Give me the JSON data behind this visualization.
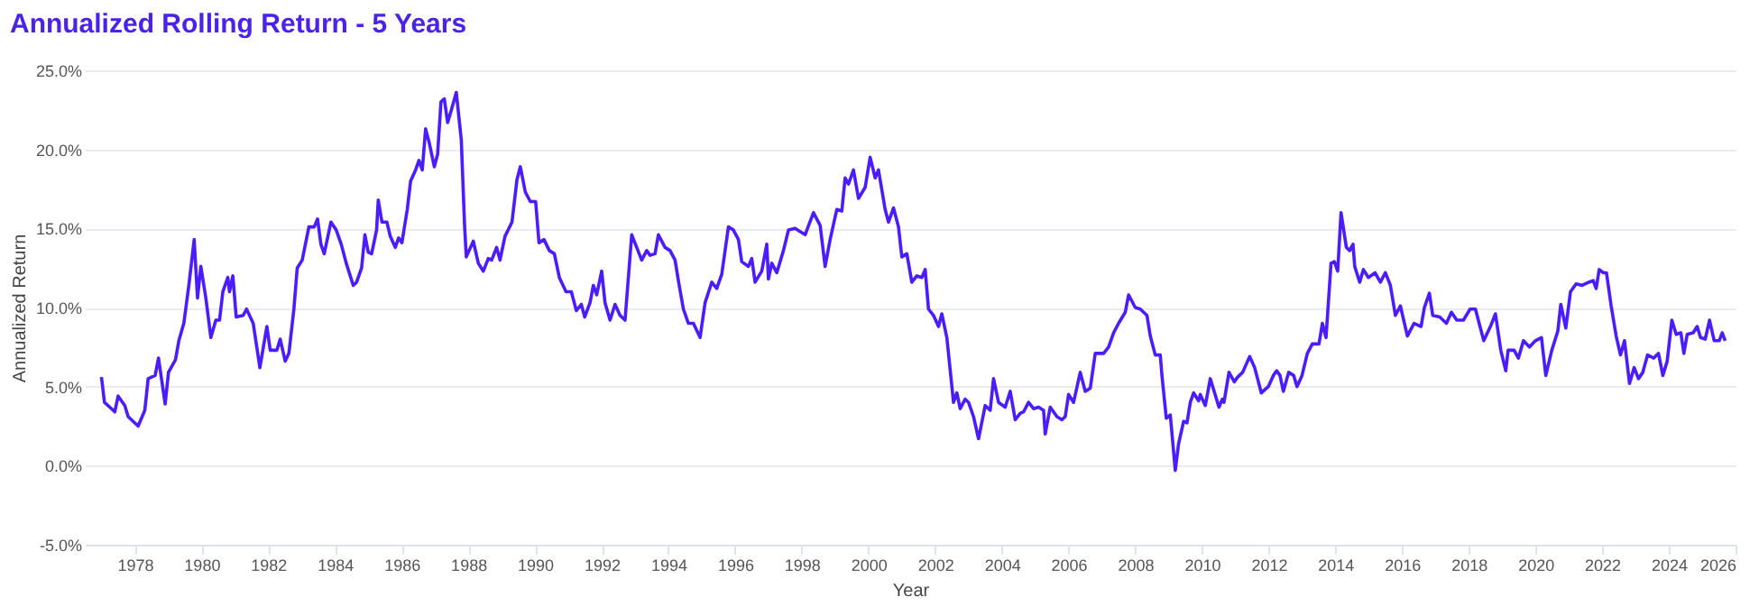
{
  "chart_data": {
    "type": "line",
    "title": "Annualized Rolling Return - 5 Years",
    "xlabel": "Year",
    "ylabel": "Annualized Return",
    "xlim": [
      1976.5,
      2026
    ],
    "xticks": [
      1978,
      1980,
      1982,
      1984,
      1986,
      1988,
      1990,
      1992,
      1994,
      1996,
      1998,
      2000,
      2002,
      2004,
      2006,
      2008,
      2010,
      2012,
      2014,
      2016,
      2018,
      2020,
      2022,
      2024,
      2026
    ],
    "ylim": [
      -5,
      25
    ],
    "yticks": [
      {
        "value": -5,
        "label": "-5.0%"
      },
      {
        "value": 0,
        "label": "0.0%"
      },
      {
        "value": 5,
        "label": "5.0%"
      },
      {
        "value": 10,
        "label": "10.0%"
      },
      {
        "value": 15,
        "label": "15.0%"
      },
      {
        "value": 20,
        "label": "20.0%"
      },
      {
        "value": 25,
        "label": "25.0%"
      }
    ],
    "grid": "y",
    "series": [
      {
        "color": "#4b1cff",
        "x": [
          1977.0,
          1977.09,
          1977.3,
          1977.4,
          1977.5,
          1977.7,
          1977.8,
          1978.1,
          1978.3,
          1978.4,
          1978.61,
          1978.71,
          1978.91,
          1979.01,
          1979.22,
          1979.32,
          1979.47,
          1979.62,
          1979.78,
          1979.88,
          1979.98,
          1980.13,
          1980.28,
          1980.43,
          1980.54,
          1980.64,
          1980.79,
          1980.84,
          1980.94,
          1981.04,
          1981.25,
          1981.35,
          1981.55,
          1981.75,
          1981.96,
          1982.06,
          1982.26,
          1982.36,
          1982.51,
          1982.62,
          1982.77,
          1982.87,
          1983.02,
          1983.22,
          1983.38,
          1983.48,
          1983.58,
          1983.68,
          1983.88,
          1984.04,
          1984.19,
          1984.34,
          1984.55,
          1984.65,
          1984.8,
          1984.9,
          1985.0,
          1985.1,
          1985.25,
          1985.3,
          1985.41,
          1985.56,
          1985.66,
          1985.81,
          1985.91,
          1986.01,
          1986.17,
          1986.27,
          1986.42,
          1986.52,
          1986.62,
          1986.72,
          1986.83,
          1986.98,
          1987.08,
          1987.18,
          1987.28,
          1987.38,
          1987.48,
          1987.64,
          1987.79,
          1987.89,
          1987.94,
          1988.15,
          1988.3,
          1988.45,
          1988.6,
          1988.7,
          1988.85,
          1988.95,
          1989.1,
          1989.31,
          1989.46,
          1989.56,
          1989.71,
          1989.86,
          1990.02,
          1990.12,
          1990.27,
          1990.43,
          1990.58,
          1990.73,
          1990.93,
          1991.09,
          1991.24,
          1991.39,
          1991.49,
          1991.65,
          1991.75,
          1991.85,
          1992.0,
          1992.1,
          1992.25,
          1992.4,
          1992.55,
          1992.7,
          1992.9,
          1993.2,
          1993.35,
          1993.45,
          1993.6,
          1993.7,
          1993.9,
          1994.05,
          1994.2,
          1994.3,
          1994.45,
          1994.6,
          1994.75,
          1994.95,
          1995.1,
          1995.3,
          1995.45,
          1995.6,
          1995.8,
          1995.95,
          1996.1,
          1996.2,
          1996.4,
          1996.5,
          1996.6,
          1996.8,
          1996.95,
          1997.0,
          1997.1,
          1997.25,
          1997.45,
          1997.6,
          1997.8,
          1998.1,
          1998.35,
          1998.5,
          1998.55,
          1998.7,
          1998.85,
          1999.05,
          1999.2,
          1999.3,
          1999.4,
          1999.55,
          1999.7,
          1999.9,
          2000.05,
          2000.2,
          2000.3,
          2000.5,
          2000.6,
          2000.75,
          2000.9,
          2001.0,
          2001.15,
          2001.3,
          2001.45,
          2001.6,
          2001.7,
          2001.8,
          2001.95,
          2002.1,
          2002.2,
          2002.35,
          2002.55,
          2002.65,
          2002.75,
          2002.9,
          2003.0,
          2003.15,
          2003.3,
          2003.5,
          2003.65,
          2003.75,
          2003.9,
          2004.1,
          2004.25,
          2004.4,
          2004.55,
          2004.65,
          2004.8,
          2004.95,
          2005.1,
          2005.25,
          2005.3,
          2005.45,
          2005.65,
          2005.8,
          2005.9,
          2006.0,
          2006.15,
          2006.35,
          2006.5,
          2006.65,
          2006.8,
          2007.05,
          2007.2,
          2007.35,
          2007.5,
          2007.7,
          2007.8,
          2008.0,
          2008.15,
          2008.35,
          2008.45,
          2008.6,
          2008.75,
          2008.8,
          2008.93,
          2009.05,
          2009.2,
          2009.3,
          2009.45,
          2009.55,
          2009.65,
          2009.75,
          2009.9,
          2009.95,
          2010.1,
          2010.25,
          2010.51,
          2010.61,
          2010.66,
          2010.81,
          2010.97,
          2011.07,
          2011.22,
          2011.43,
          2011.58,
          2011.78,
          2011.99,
          2012.14,
          2012.24,
          2012.34,
          2012.44,
          2012.6,
          2012.75,
          2012.85,
          2013.0,
          2013.16,
          2013.31,
          2013.51,
          2013.61,
          2013.72,
          2013.87,
          2013.97,
          2014.07,
          2014.17,
          2014.33,
          2014.43,
          2014.53,
          2014.58,
          2014.73,
          2014.84,
          2014.99,
          2015.19,
          2015.35,
          2015.5,
          2015.65,
          2015.8,
          2015.95,
          2016.16,
          2016.36,
          2016.57,
          2016.67,
          2016.82,
          2016.92,
          2017.13,
          2017.33,
          2017.48,
          2017.64,
          2017.84,
          2018.04,
          2018.2,
          2018.45,
          2018.65,
          2018.8,
          2018.96,
          2019.11,
          2019.18,
          2019.36,
          2019.49,
          2019.64,
          2019.82,
          2020.0,
          2020.18,
          2020.31,
          2020.49,
          2020.67,
          2020.76,
          2020.91,
          2021.05,
          2021.22,
          2021.4,
          2021.6,
          2021.73,
          2021.82,
          2021.91,
          2022.04,
          2022.13,
          2022.27,
          2022.42,
          2022.55,
          2022.67,
          2022.82,
          2022.96,
          2023.09,
          2023.22,
          2023.36,
          2023.55,
          2023.69,
          2023.82,
          2023.95,
          2024.09,
          2024.22,
          2024.36,
          2024.45,
          2024.55,
          2024.73,
          2024.85,
          2024.95,
          2025.09,
          2025.22,
          2025.36,
          2025.51,
          2025.6,
          2025.69
        ],
        "values": [
          5.6,
          4.0,
          3.6,
          3.4,
          4.4,
          3.8,
          3.1,
          2.5,
          3.5,
          5.5,
          5.7,
          6.8,
          3.9,
          5.9,
          6.7,
          7.9,
          9.0,
          11.4,
          14.3,
          10.6,
          12.6,
          10.6,
          8.1,
          9.2,
          9.2,
          11.0,
          11.9,
          11.0,
          12.0,
          9.4,
          9.5,
          9.9,
          9.0,
          6.2,
          8.8,
          7.3,
          7.3,
          8.0,
          6.6,
          7.1,
          9.9,
          12.5,
          13.0,
          15.1,
          15.1,
          15.6,
          14.0,
          13.4,
          15.4,
          14.9,
          14.0,
          12.8,
          11.4,
          11.6,
          12.5,
          14.6,
          13.5,
          13.4,
          14.9,
          16.8,
          15.4,
          15.4,
          14.5,
          13.8,
          14.4,
          14.1,
          16.2,
          18.0,
          18.7,
          19.3,
          18.7,
          21.3,
          20.4,
          18.9,
          19.7,
          23.0,
          23.2,
          21.7,
          22.4,
          23.6,
          20.6,
          15.1,
          13.2,
          14.2,
          12.8,
          12.3,
          13.1,
          13.0,
          13.8,
          13.0,
          14.5,
          15.4,
          18.1,
          18.9,
          17.3,
          16.7,
          16.7,
          14.1,
          14.3,
          13.6,
          13.4,
          11.9,
          11.0,
          11.0,
          9.8,
          10.2,
          9.4,
          10.3,
          11.4,
          10.8,
          12.3,
          10.3,
          9.2,
          10.2,
          9.5,
          9.2,
          14.6,
          13.0,
          13.6,
          13.3,
          13.4,
          14.6,
          13.8,
          13.6,
          13.0,
          11.7,
          9.9,
          9.0,
          9.0,
          8.1,
          10.3,
          11.6,
          11.2,
          12.1,
          15.1,
          14.9,
          14.3,
          12.9,
          12.6,
          13.1,
          11.6,
          12.3,
          14.0,
          11.8,
          12.8,
          12.2,
          13.6,
          14.9,
          15.0,
          14.6,
          16.0,
          15.4,
          15.2,
          12.6,
          14.3,
          16.2,
          16.1,
          18.2,
          17.8,
          18.7,
          16.9,
          17.6,
          19.5,
          18.2,
          18.7,
          16.2,
          15.4,
          16.3,
          15.1,
          13.2,
          13.4,
          11.6,
          12.0,
          11.9,
          12.4,
          9.9,
          9.5,
          8.8,
          9.6,
          8.1,
          4.0,
          4.6,
          3.6,
          4.2,
          4.0,
          3.1,
          1.7,
          3.8,
          3.5,
          5.5,
          4.0,
          3.7,
          4.7,
          2.9,
          3.3,
          3.4,
          4.0,
          3.6,
          3.7,
          3.5,
          2.0,
          3.7,
          3.1,
          2.9,
          3.1,
          4.5,
          4.0,
          5.9,
          4.7,
          4.9,
          7.1,
          7.1,
          7.5,
          8.4,
          9.0,
          9.7,
          10.8,
          10.0,
          9.9,
          9.5,
          8.2,
          7.0,
          7.0,
          5.7,
          3.0,
          3.2,
          -0.3,
          1.4,
          2.8,
          2.7,
          4.0,
          4.6,
          4.1,
          4.5,
          3.8,
          5.5,
          3.7,
          4.2,
          4.0,
          5.9,
          5.3,
          5.6,
          5.9,
          6.9,
          6.2,
          4.6,
          5.0,
          5.7,
          6.0,
          5.7,
          4.7,
          5.9,
          5.7,
          5.0,
          5.7,
          7.1,
          7.7,
          7.7,
          9.0,
          8.1,
          12.8,
          12.9,
          12.3,
          16.0,
          13.8,
          13.6,
          14.0,
          12.6,
          11.6,
          12.4,
          11.9,
          12.2,
          11.6,
          12.2,
          11.4,
          9.5,
          10.1,
          8.2,
          9.0,
          8.8,
          10.0,
          10.9,
          9.5,
          9.4,
          9.0,
          9.7,
          9.2,
          9.2,
          9.9,
          9.9,
          7.9,
          8.8,
          9.6,
          7.3,
          6.0,
          7.3,
          7.3,
          6.8,
          7.9,
          7.5,
          7.9,
          8.1,
          5.7,
          7.3,
          8.5,
          10.2,
          8.7,
          11.0,
          11.5,
          11.4,
          11.6,
          11.7,
          11.2,
          12.4,
          12.2,
          12.2,
          10.1,
          8.2,
          7.0,
          7.9,
          5.2,
          6.2,
          5.5,
          5.9,
          7.0,
          6.8,
          7.1,
          5.7,
          6.6,
          9.2,
          8.3,
          8.4,
          7.1,
          8.3,
          8.4,
          8.8,
          8.1,
          8.0,
          9.2,
          7.9,
          7.9,
          8.4,
          7.9
        ]
      }
    ]
  }
}
